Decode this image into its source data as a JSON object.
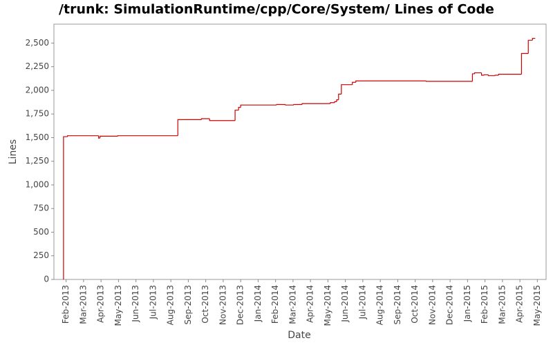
{
  "chart_data": {
    "type": "step-line",
    "title": "/trunk: SimulationRuntime/cpp/Core/System/ Lines of Code",
    "x_label": "Date",
    "y_label": "Lines",
    "xlim": [
      -0.7,
      27.5
    ],
    "xticks": [
      {
        "value": 0,
        "label": "Feb-2013"
      },
      {
        "value": 1,
        "label": "Mar-2013"
      },
      {
        "value": 2,
        "label": "Apr-2013"
      },
      {
        "value": 3,
        "label": "May-2013"
      },
      {
        "value": 4,
        "label": "Jun-2013"
      },
      {
        "value": 5,
        "label": "Jul-2013"
      },
      {
        "value": 6,
        "label": "Aug-2013"
      },
      {
        "value": 7,
        "label": "Sep-2013"
      },
      {
        "value": 8,
        "label": "Oct-2013"
      },
      {
        "value": 9,
        "label": "Nov-2013"
      },
      {
        "value": 10,
        "label": "Dec-2013"
      },
      {
        "value": 11,
        "label": "Jan-2014"
      },
      {
        "value": 12,
        "label": "Feb-2014"
      },
      {
        "value": 13,
        "label": "Mar-2014"
      },
      {
        "value": 14,
        "label": "Apr-2014"
      },
      {
        "value": 15,
        "label": "May-2014"
      },
      {
        "value": 16,
        "label": "Jun-2014"
      },
      {
        "value": 17,
        "label": "Jul-2014"
      },
      {
        "value": 18,
        "label": "Aug-2014"
      },
      {
        "value": 19,
        "label": "Sep-2014"
      },
      {
        "value": 20,
        "label": "Oct-2014"
      },
      {
        "value": 21,
        "label": "Nov-2014"
      },
      {
        "value": 22,
        "label": "Dec-2014"
      },
      {
        "value": 23,
        "label": "Jan-2015"
      },
      {
        "value": 24,
        "label": "Feb-2015"
      },
      {
        "value": 25,
        "label": "Mar-2015"
      },
      {
        "value": 26,
        "label": "Apr-2015"
      },
      {
        "value": 27,
        "label": "May-2015"
      }
    ],
    "ylim": [
      0,
      2700
    ],
    "yticks": [
      0,
      250,
      500,
      750,
      {
        "value": 1000,
        "label": "1,000"
      },
      {
        "value": 1250,
        "label": "1,250"
      },
      {
        "value": 1500,
        "label": "1,500"
      },
      {
        "value": 1750,
        "label": "1,750"
      },
      {
        "value": 2000,
        "label": "2,000"
      },
      {
        "value": 2250,
        "label": "2,250"
      },
      {
        "value": 2500,
        "label": "2,500"
      }
    ],
    "grid": false,
    "color": "#cc0000",
    "x": [
      -0.16,
      -0.15,
      0.08,
      1.86,
      1.94,
      2.96,
      6.4,
      7.75,
      8.22,
      9.68,
      9.88,
      10.0,
      12.06,
      12.57,
      13.04,
      13.52,
      15.14,
      15.38,
      15.5,
      15.61,
      15.77,
      16.4,
      16.6,
      20.63,
      23.28,
      23.4,
      23.8,
      23.95,
      24.19,
      24.58,
      24.78,
      26.09,
      26.48,
      26.72,
      26.88
    ],
    "values": [
      0,
      1510,
      1520,
      1495,
      1515,
      1520,
      1690,
      1700,
      1680,
      1790,
      1820,
      1845,
      1850,
      1845,
      1850,
      1860,
      1870,
      1880,
      1900,
      1960,
      2060,
      2085,
      2100,
      2095,
      2175,
      2185,
      2160,
      2165,
      2155,
      2160,
      2170,
      2390,
      2530,
      2550,
      2550
    ]
  }
}
